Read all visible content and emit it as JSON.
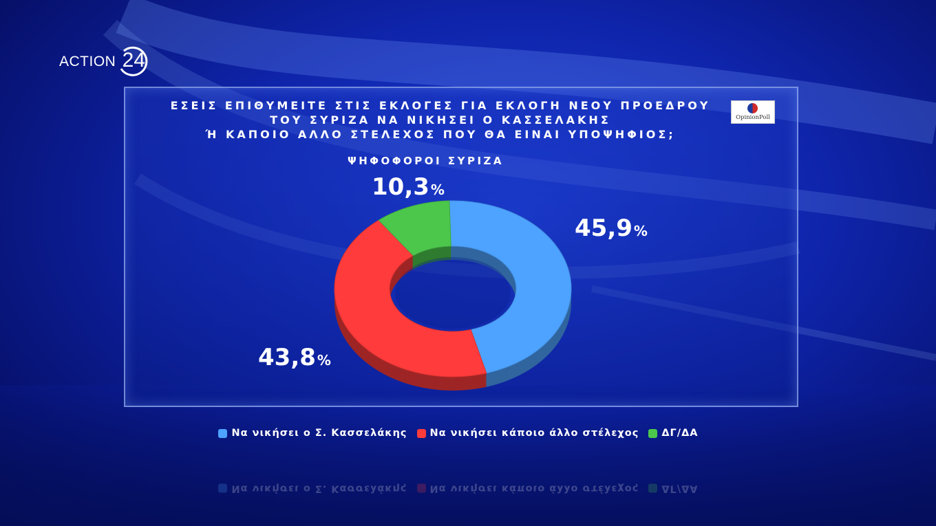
{
  "brand": {
    "name": "ACTION",
    "number": "24"
  },
  "pollster": {
    "name": "OpinionPoll"
  },
  "question": {
    "lines": [
      "ΕΣΕΙΣ ΕΠΙΘΥΜΕΙΤΕ ΣΤΙΣ ΕΚΛΟΓΕΣ ΓΙΑ ΕΚΛΟΓΗ ΝΕΟΥ ΠΡΟΕΔΡΟΥ",
      "ΤΟΥ ΣΥΡΙΖΑ ΝΑ ΝΙΚΗΣΕΙ Ο ΚΑΣΣΕΛΑΚΗΣ",
      "Ή ΚΑΠΟΙΟ ΑΛΛΟ ΣΤΕΛΕΧΟΣ ΠΟΥ ΘΑ ΕΙΝΑΙ ΥΠΟΨΗΦΙΟΣ;"
    ]
  },
  "chart_data": {
    "type": "pie",
    "title": "ΕΣΕΙΣ ΕΠΙΘΥΜΕΙΤΕ ΣΤΙΣ ΕΚΛΟΓΕΣ ΓΙΑ ΕΚΛΟΓΗ ΝΕΟΥ ΠΡΟΕΔΡΟΥ ΤΟΥ ΣΥΡΙΖΑ ΝΑ ΝΙΚΗΣΕΙ Ο ΚΑΣΣΕΛΑΚΗΣ Ή ΚΑΠΟΙΟ ΑΛΛΟ ΣΤΕΛΕΧΟΣ ΠΟΥ ΘΑ ΕΙΝΑΙ ΥΠΟΨΗΦΙΟΣ;",
    "subtitle": "ΨΗΦΟΦΟΡΟΙ ΣΥΡΙΖΑ",
    "donut": true,
    "legend_position": "bottom",
    "slices": [
      {
        "label": "Να νικήσει ο Σ. Κασσελάκης",
        "value": 45.9,
        "display": "45,9",
        "unit": "%",
        "color": "#4da3ff"
      },
      {
        "label": "Να νικήσει κάποιο άλλο στέλεχος",
        "value": 43.8,
        "display": "43,8",
        "unit": "%",
        "color": "#ff3b3b"
      },
      {
        "label": "ΔΓ/ΔΑ",
        "value": 10.3,
        "display": "10,3",
        "unit": "%",
        "color": "#4cc74c"
      }
    ]
  }
}
